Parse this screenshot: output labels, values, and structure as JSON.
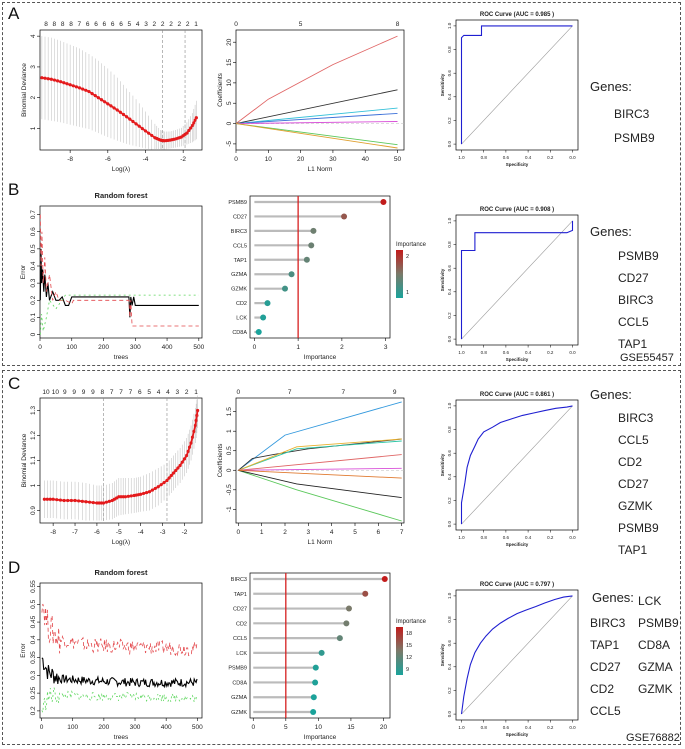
{
  "labels": {
    "A": "A",
    "B": "B",
    "C": "C",
    "D": "D",
    "genes_title": "Genes:",
    "dataset1": "GSE55457",
    "dataset2": "GSE76882"
  },
  "genes_lists": {
    "A": [
      "BIRC3",
      "PSMB9"
    ],
    "B": [
      "PSMB9",
      "CD27",
      "BIRC3",
      "CCL5",
      "TAP1"
    ],
    "C": [
      "BIRC3",
      "CCL5",
      "CD2",
      "CD27",
      "GZMK",
      "PSMB9",
      "TAP1"
    ],
    "D_left": [
      "BIRC3",
      "TAP1",
      "CD27",
      "CD2",
      "CCL5"
    ],
    "D_right": [
      "LCK",
      "PSMB9",
      "CD8A",
      "GZMA",
      "GZMK"
    ]
  },
  "colors": {
    "cv_red": "#e41a1c",
    "roc_blue": "#1f1fd1",
    "rf_black": "#000000",
    "rf_red": "#e3474b",
    "rf_green": "#5ad65a",
    "vline_red": "#d62020",
    "imp_high": "#c21b1b",
    "imp_mid": "#7a7a6a",
    "imp_low": "#1aa39b"
  },
  "chart_data": [
    {
      "id": "A1",
      "type": "line",
      "xlabel": "Log(λ)",
      "ylabel": "Binomial Deviance",
      "xlim": [
        -9.6,
        -1.0
      ],
      "ylim": [
        0.3,
        4.2
      ],
      "xticks": [
        -8,
        -6,
        -4,
        -2
      ],
      "yticks": [
        1,
        2,
        3,
        4
      ],
      "top_ticks": [
        "8",
        "8",
        "8",
        "8",
        "7",
        "6",
        "6",
        "6",
        "6",
        "6",
        "5",
        "4",
        "3",
        "2",
        "2",
        "2",
        "2",
        "2",
        "1"
      ],
      "vlines": [
        -3.1,
        -1.9
      ],
      "x": [
        -9.5,
        -9.0,
        -8.5,
        -8.0,
        -7.5,
        -7.0,
        -6.5,
        -6.0,
        -5.5,
        -5.0,
        -4.5,
        -4.0,
        -3.5,
        -3.2,
        -3.0,
        -2.7,
        -2.4,
        -2.1,
        -1.8,
        -1.5,
        -1.3
      ],
      "y": [
        2.65,
        2.6,
        2.52,
        2.42,
        2.32,
        2.2,
        2.0,
        1.8,
        1.6,
        1.38,
        1.15,
        0.92,
        0.7,
        0.62,
        0.6,
        0.62,
        0.66,
        0.72,
        0.85,
        1.1,
        1.35
      ],
      "lower": [
        1.3,
        1.25,
        1.2,
        1.12,
        1.05,
        0.98,
        0.85,
        0.72,
        0.6,
        0.5,
        0.42,
        0.35,
        0.3,
        0.3,
        0.32,
        0.35,
        0.38,
        0.42,
        0.48,
        0.55,
        0.65
      ],
      "upper": [
        4.0,
        3.95,
        3.85,
        3.72,
        3.6,
        3.42,
        3.2,
        2.95,
        2.65,
        2.3,
        1.95,
        1.55,
        1.15,
        0.95,
        0.9,
        0.9,
        0.95,
        1.02,
        1.2,
        1.5,
        1.9
      ]
    },
    {
      "id": "A2",
      "type": "line",
      "xlabel": "L1 Norm",
      "ylabel": "Coefficients",
      "xlim": [
        0,
        52
      ],
      "ylim": [
        -6.5,
        23
      ],
      "xticks": [
        0,
        10,
        20,
        30,
        40,
        50
      ],
      "yticks": [
        -5,
        0,
        5,
        10,
        15,
        20
      ],
      "top_labels": [
        {
          "x": 0,
          "t": "0"
        },
        {
          "x": 20,
          "t": "5"
        },
        {
          "x": 50,
          "t": "8"
        }
      ],
      "series": [
        {
          "name": "s1",
          "color": "#e06666",
          "x": [
            0,
            10,
            30,
            50
          ],
          "y": [
            0,
            6,
            14.5,
            21.5
          ]
        },
        {
          "name": "s2",
          "color": "#333333",
          "x": [
            0,
            50
          ],
          "y": [
            0,
            8.3
          ]
        },
        {
          "name": "s3",
          "color": "#35c1d9",
          "x": [
            0,
            50
          ],
          "y": [
            0,
            3.8
          ]
        },
        {
          "name": "s4",
          "color": "#3a6fd8",
          "x": [
            0,
            50
          ],
          "y": [
            0,
            2.5
          ]
        },
        {
          "name": "s5",
          "color": "#d84fd8",
          "x": [
            0,
            50
          ],
          "y": [
            0,
            0.5
          ]
        },
        {
          "name": "s6",
          "color": "#5cc85c",
          "x": [
            0,
            50
          ],
          "y": [
            0,
            -5.2
          ]
        },
        {
          "name": "s7",
          "color": "#e0a030",
          "x": [
            0,
            50
          ],
          "y": [
            0,
            -6.0
          ]
        }
      ]
    },
    {
      "id": "A3",
      "type": "line",
      "title": "ROC Curve (AUC = 0.985 )",
      "xlabel": "Specificity",
      "ylabel": "Sensitivity",
      "xticks": [
        "1.0",
        "0.8",
        "0.6",
        "0.4",
        "0.2",
        "0.0"
      ],
      "yticks": [
        "0.0",
        "0.2",
        "0.4",
        "0.6",
        "0.8",
        "1.0"
      ],
      "spec": [
        1.0,
        1.0,
        0.98,
        0.92,
        0.82,
        0.82,
        0.0
      ],
      "sens": [
        0.0,
        0.9,
        0.92,
        0.92,
        0.92,
        1.0,
        1.0
      ]
    },
    {
      "id": "B1",
      "type": "line",
      "title": "Random forest",
      "xlabel": "trees",
      "ylabel": "Error",
      "xlim": [
        0,
        510
      ],
      "ylim": [
        -0.02,
        0.75
      ],
      "xticks": [
        0,
        100,
        200,
        300,
        400,
        500
      ],
      "yticks": [
        0.0,
        0.1,
        0.2,
        0.3,
        0.4,
        0.5,
        0.6,
        0.7
      ],
      "series": [
        {
          "name": "OOB",
          "color": "#000000",
          "dash": "",
          "x": [
            1,
            3,
            5,
            8,
            12,
            15,
            20,
            25,
            30,
            40,
            50,
            60,
            70,
            80,
            90,
            100,
            105,
            150,
            200,
            250,
            280,
            283,
            286,
            290,
            295,
            300,
            350,
            400,
            450,
            500
          ],
          "y": [
            0.2,
            0.5,
            0.3,
            0.38,
            0.25,
            0.35,
            0.22,
            0.3,
            0.2,
            0.25,
            0.2,
            0.2,
            0.22,
            0.17,
            0.17,
            0.22,
            0.22,
            0.22,
            0.22,
            0.22,
            0.22,
            0.1,
            0.22,
            0.17,
            0.22,
            0.17,
            0.17,
            0.17,
            0.17,
            0.17
          ]
        },
        {
          "name": "class1",
          "color": "#e3474b",
          "dash": "4,3",
          "x": [
            1,
            3,
            6,
            10,
            15,
            20,
            30,
            40,
            50,
            60,
            80,
            100,
            105,
            200,
            270,
            280,
            283,
            286,
            290,
            300,
            400,
            500
          ],
          "y": [
            0.7,
            0.4,
            0.6,
            0.3,
            0.45,
            0.25,
            0.35,
            0.2,
            0.25,
            0.2,
            0.2,
            0.18,
            0.2,
            0.2,
            0.2,
            0.2,
            0.1,
            0.2,
            0.05,
            0.05,
            0.05,
            0.05
          ]
        },
        {
          "name": "class2",
          "color": "#5ad65a",
          "dash": "2,3",
          "x": [
            1,
            5,
            10,
            20,
            30,
            50,
            80,
            100,
            150,
            200,
            300,
            400,
            500
          ],
          "y": [
            0.0,
            0.12,
            0.02,
            0.1,
            0.2,
            0.15,
            0.23,
            0.23,
            0.23,
            0.23,
            0.23,
            0.23,
            0.23
          ]
        }
      ]
    },
    {
      "id": "B2",
      "type": "scatter",
      "xlabel": "Importance",
      "legend_title": "Importance",
      "xlim": [
        -0.1,
        3.1
      ],
      "xticks": [
        0,
        1,
        2,
        3
      ],
      "vline": 1.0,
      "legend_ticks": [
        "2",
        "1"
      ],
      "categories": [
        "PSMB9",
        "CD27",
        "BIRC3",
        "CCL5",
        "TAP1",
        "GZMA",
        "GZMK",
        "CD2",
        "LCK",
        "CD8A"
      ],
      "values": [
        2.95,
        2.05,
        1.35,
        1.3,
        1.2,
        0.85,
        0.7,
        0.3,
        0.2,
        0.1
      ]
    },
    {
      "id": "B3",
      "type": "line",
      "title": "ROC Curve (AUC = 0.908 )",
      "xlabel": "Specificity",
      "ylabel": "Sensitivity",
      "xticks": [
        "1.0",
        "0.8",
        "0.6",
        "0.4",
        "0.2",
        "0.0"
      ],
      "yticks": [
        "0.0",
        "0.2",
        "0.4",
        "0.6",
        "0.8",
        "1.0"
      ],
      "spec": [
        1.0,
        1.0,
        0.95,
        0.88,
        0.88,
        0.05,
        0.0,
        0.0
      ],
      "sens": [
        0.0,
        0.75,
        0.75,
        0.75,
        0.9,
        0.9,
        0.92,
        1.0
      ]
    },
    {
      "id": "C1",
      "type": "line",
      "xlabel": "Log(λ)",
      "ylabel": "Binomial Deviance",
      "xlim": [
        -8.6,
        -1.2
      ],
      "ylim": [
        0.85,
        1.35
      ],
      "xticks": [
        -8,
        -7,
        -6,
        -5,
        -4,
        -3,
        -2
      ],
      "yticks": [
        0.9,
        1.0,
        1.1,
        1.2,
        1.3
      ],
      "top_ticks": [
        "10",
        "10",
        "9",
        "9",
        "9",
        "9",
        "8",
        "7",
        "7",
        "7",
        "6",
        "5",
        "4",
        "4",
        "3",
        "2",
        "1"
      ],
      "vlines": [
        -5.7,
        -2.8
      ],
      "x": [
        -8.4,
        -8.0,
        -7.5,
        -7.0,
        -6.5,
        -6.0,
        -5.7,
        -5.3,
        -5.0,
        -4.7,
        -4.3,
        -4.0,
        -3.6,
        -3.2,
        -2.8,
        -2.5,
        -2.2,
        -1.9,
        -1.7,
        -1.5,
        -1.4
      ],
      "y": [
        0.945,
        0.945,
        0.94,
        0.94,
        0.935,
        0.93,
        0.93,
        0.94,
        0.955,
        0.955,
        0.96,
        0.965,
        0.975,
        0.995,
        1.02,
        1.05,
        1.08,
        1.12,
        1.17,
        1.24,
        1.3
      ],
      "lower": [
        0.87,
        0.87,
        0.865,
        0.865,
        0.86,
        0.86,
        0.86,
        0.865,
        0.88,
        0.885,
        0.89,
        0.895,
        0.9,
        0.92,
        0.95,
        0.98,
        1.01,
        1.05,
        1.1,
        1.17,
        1.23
      ],
      "upper": [
        1.02,
        1.02,
        1.015,
        1.015,
        1.01,
        1.0,
        1.0,
        1.01,
        1.03,
        1.03,
        1.03,
        1.035,
        1.05,
        1.07,
        1.09,
        1.12,
        1.15,
        1.19,
        1.24,
        1.31,
        1.36
      ]
    },
    {
      "id": "C2",
      "type": "line",
      "xlabel": "L1 Norm",
      "ylabel": "Coefficients",
      "xlim": [
        -0.1,
        7.1
      ],
      "ylim": [
        -1.35,
        1.85
      ],
      "xticks": [
        0,
        1,
        2,
        3,
        4,
        5,
        6,
        7
      ],
      "yticks": [
        -1.0,
        -0.5,
        0.0,
        0.5,
        1.0,
        1.5
      ],
      "top_labels": [
        {
          "x": 0,
          "t": "0"
        },
        {
          "x": 2.2,
          "t": "7"
        },
        {
          "x": 4.5,
          "t": "7"
        },
        {
          "x": 6.7,
          "t": "9"
        }
      ],
      "series": [
        {
          "name": "s1",
          "color": "#3399dd",
          "x": [
            0,
            2,
            7
          ],
          "y": [
            0,
            0.9,
            1.75
          ]
        },
        {
          "name": "s2",
          "color": "#333333",
          "x": [
            0,
            0.6,
            1.5,
            3,
            7
          ],
          "y": [
            0,
            0.3,
            0.4,
            0.55,
            0.8
          ]
        },
        {
          "name": "s3",
          "color": "#2ec7a6",
          "x": [
            0,
            2.5,
            7
          ],
          "y": [
            0,
            0.55,
            0.75
          ]
        },
        {
          "name": "s4",
          "color": "#e8b030",
          "x": [
            0,
            2.5,
            7
          ],
          "y": [
            0,
            0.6,
            0.8
          ]
        },
        {
          "name": "s5",
          "color": "#e06666",
          "x": [
            0,
            7
          ],
          "y": [
            0,
            0.4
          ]
        },
        {
          "name": "s6",
          "color": "#d84fd8",
          "x": [
            0,
            7
          ],
          "y": [
            0,
            0.05
          ]
        },
        {
          "name": "s7",
          "color": "#5cc85c",
          "x": [
            0,
            2.5,
            7
          ],
          "y": [
            0,
            -0.5,
            -1.3
          ]
        },
        {
          "name": "s8",
          "color": "#222222",
          "x": [
            0,
            2.5,
            7
          ],
          "y": [
            0,
            -0.35,
            -0.7
          ]
        },
        {
          "name": "s9",
          "color": "#e07a30",
          "x": [
            0,
            7
          ],
          "y": [
            0,
            -0.2
          ]
        }
      ]
    },
    {
      "id": "C3",
      "type": "line",
      "title": "ROC Curve (AUC = 0.861 )",
      "xlabel": "Specificity",
      "ylabel": "Sensitivity",
      "xticks": [
        "1.0",
        "0.8",
        "0.6",
        "0.4",
        "0.2",
        "0.0"
      ],
      "yticks": [
        "0.0",
        "0.2",
        "0.4",
        "0.6",
        "0.8",
        "1.0"
      ],
      "spec": [
        1.0,
        1.0,
        0.97,
        0.95,
        0.92,
        0.88,
        0.85,
        0.8,
        0.72,
        0.65,
        0.55,
        0.45,
        0.35,
        0.25,
        0.15,
        0.05,
        0.0
      ],
      "sens": [
        0.0,
        0.18,
        0.35,
        0.48,
        0.58,
        0.66,
        0.72,
        0.78,
        0.82,
        0.86,
        0.89,
        0.92,
        0.94,
        0.96,
        0.98,
        0.99,
        1.0
      ]
    },
    {
      "id": "D1",
      "type": "line",
      "title": "Random forest",
      "xlabel": "trees",
      "ylabel": "Error",
      "xlim": [
        -5,
        515
      ],
      "ylim": [
        0.18,
        0.56
      ],
      "xticks": [
        0,
        100,
        200,
        300,
        400,
        500
      ],
      "yticks": [
        0.2,
        0.25,
        0.3,
        0.35,
        0.4,
        0.45,
        0.5,
        0.55
      ],
      "series": [
        {
          "name": "OOB",
          "color": "#000000",
          "dash": "",
          "base": [
            [
              1,
              0.35
            ],
            [
              20,
              0.31
            ],
            [
              60,
              0.29
            ],
            [
              150,
              0.285
            ],
            [
              300,
              0.28
            ],
            [
              500,
              0.28
            ]
          ],
          "jitter": 0.012
        },
        {
          "name": "class1",
          "color": "#e3474b",
          "dash": "4,3",
          "base": [
            [
              1,
              0.52
            ],
            [
              20,
              0.44
            ],
            [
              60,
              0.4
            ],
            [
              150,
              0.385
            ],
            [
              300,
              0.38
            ],
            [
              500,
              0.375
            ]
          ],
          "jitter": 0.02
        },
        {
          "name": "class2",
          "color": "#5ad65a",
          "dash": "2,3",
          "base": [
            [
              1,
              0.2
            ],
            [
              20,
              0.24
            ],
            [
              60,
              0.245
            ],
            [
              150,
              0.24
            ],
            [
              300,
              0.24
            ],
            [
              500,
              0.235
            ]
          ],
          "jitter": 0.012
        }
      ]
    },
    {
      "id": "D2",
      "type": "scatter",
      "xlabel": "Importance",
      "legend_title": "Importance",
      "xlim": [
        -0.5,
        21
      ],
      "xticks": [
        0,
        5,
        10,
        15,
        20
      ],
      "vline": 5.0,
      "legend_ticks": [
        "18",
        "15",
        "12",
        "9"
      ],
      "categories": [
        "BIRC3",
        "TAP1",
        "CD27",
        "CD2",
        "CCL5",
        "LCK",
        "PSMB9",
        "CD8A",
        "GZMA",
        "GZMK"
      ],
      "values": [
        20.2,
        17.2,
        14.7,
        14.3,
        13.3,
        10.5,
        9.6,
        9.5,
        9.3,
        9.2
      ]
    },
    {
      "id": "D3",
      "type": "line",
      "title": "ROC Curve (AUC = 0.797 )",
      "xlabel": "Specificity",
      "ylabel": "Sensitivity",
      "xticks": [
        "1.0",
        "0.8",
        "0.6",
        "0.4",
        "0.2",
        "0.0"
      ],
      "yticks": [
        "0.0",
        "0.2",
        "0.4",
        "0.6",
        "0.8",
        "1.0"
      ],
      "spec": [
        1.0,
        0.98,
        0.95,
        0.92,
        0.88,
        0.83,
        0.78,
        0.72,
        0.65,
        0.58,
        0.5,
        0.42,
        0.33,
        0.25,
        0.16,
        0.08,
        0.0
      ],
      "sens": [
        0.0,
        0.15,
        0.3,
        0.42,
        0.52,
        0.6,
        0.66,
        0.72,
        0.77,
        0.81,
        0.85,
        0.88,
        0.91,
        0.94,
        0.97,
        0.99,
        1.0
      ]
    }
  ]
}
